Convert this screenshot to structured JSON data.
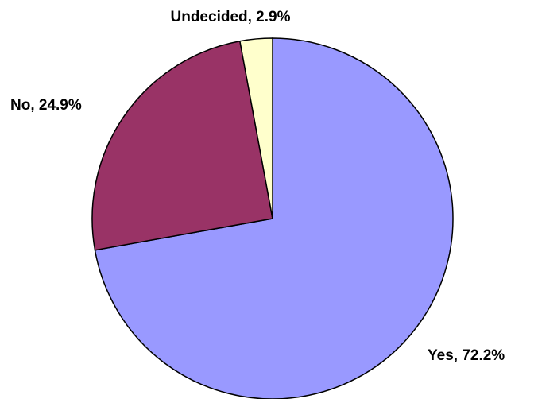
{
  "chart_data": {
    "type": "pie",
    "title": "",
    "start_angle_deg": 0,
    "direction": "clockwise",
    "slices": [
      {
        "label": "Yes",
        "value": 72.2,
        "display": "Yes, 72.2%",
        "color": "#9999ff"
      },
      {
        "label": "No",
        "value": 24.9,
        "display": "No, 24.9%",
        "color": "#993366"
      },
      {
        "label": "Undecided",
        "value": 2.9,
        "display": "Undecided, 2.9%",
        "color": "#ffffcc"
      }
    ]
  }
}
